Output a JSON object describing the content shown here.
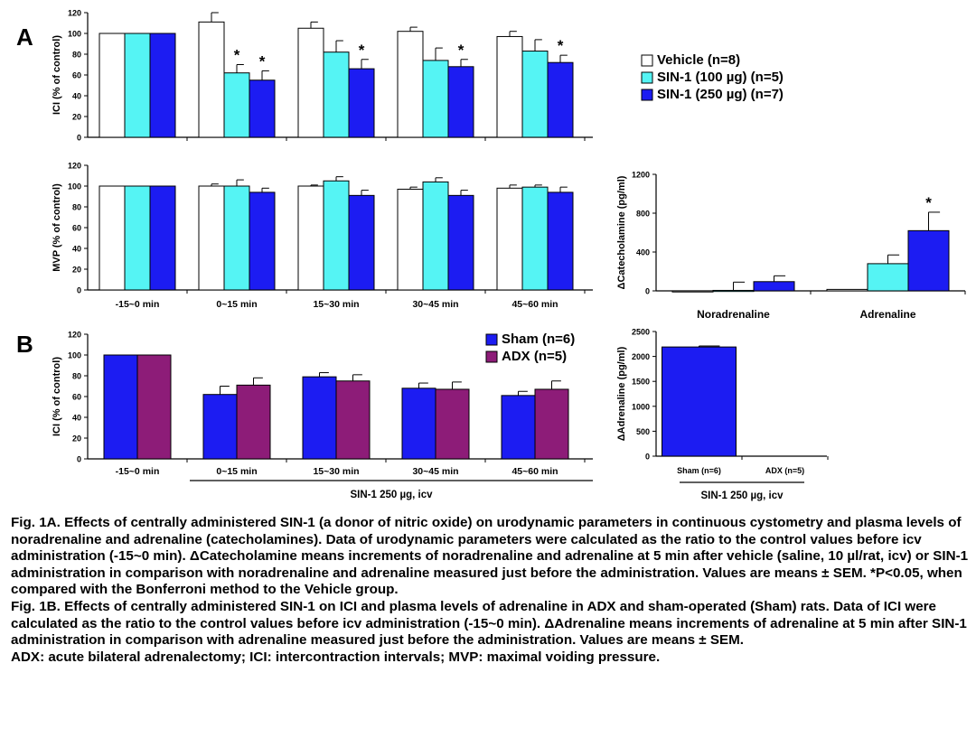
{
  "panels": {
    "a": "A",
    "b": "B"
  },
  "colors": {
    "vehicle": "#ffffff",
    "sin100": "#55f4f4",
    "sin250": "#1c1cf2",
    "sham": "#1c1cf2",
    "adx": "#8d1c78"
  },
  "legend_a": [
    {
      "label": "Vehicle (n=8)",
      "color": "#ffffff"
    },
    {
      "label": "SIN-1 (100 µg) (n=5)",
      "color": "#55f4f4"
    },
    {
      "label": "SIN-1 (250 µg) (n=7)",
      "color": "#1c1cf2"
    }
  ],
  "legend_b": [
    {
      "label": "Sham (n=6)",
      "color": "#1c1cf2"
    },
    {
      "label": "ADX (n=5)",
      "color": "#8d1c78"
    }
  ],
  "chart_data": [
    {
      "id": "ici_a",
      "type": "bar",
      "ylabel": "ICI (% of control)",
      "ylim": [
        0,
        120
      ],
      "yticks": [
        0,
        20,
        40,
        60,
        80,
        100,
        120
      ],
      "categories": [
        "-15~0 min",
        "0~15 min",
        "15~30 min",
        "30~45 min",
        "45~60 min"
      ],
      "show_xlabels": false,
      "series": [
        {
          "name": "Vehicle (n=8)",
          "color": "#ffffff",
          "values": [
            100,
            111,
            105,
            102,
            97
          ],
          "errors": [
            0,
            9,
            6,
            4,
            5
          ],
          "sig": [
            "",
            "",
            "",
            "",
            ""
          ]
        },
        {
          "name": "SIN-1 (100 µg) (n=5)",
          "color": "#55f4f4",
          "values": [
            100,
            62,
            82,
            74,
            83
          ],
          "errors": [
            0,
            8,
            11,
            12,
            11
          ],
          "sig": [
            "",
            "*",
            "",
            "",
            ""
          ]
        },
        {
          "name": "SIN-1 (250 µg) (n=7)",
          "color": "#1c1cf2",
          "values": [
            100,
            55,
            66,
            68,
            72
          ],
          "errors": [
            0,
            9,
            9,
            7,
            7
          ],
          "sig": [
            "",
            "*",
            "*",
            "*",
            "*"
          ]
        }
      ]
    },
    {
      "id": "mvp_a",
      "type": "bar",
      "ylabel": "MVP (% of control)",
      "ylim": [
        0,
        120
      ],
      "yticks": [
        0,
        20,
        40,
        60,
        80,
        100,
        120
      ],
      "categories": [
        "-15~0 min",
        "0~15 min",
        "15~30 min",
        "30~45 min",
        "45~60 min"
      ],
      "show_xlabels": true,
      "series": [
        {
          "name": "Vehicle (n=8)",
          "color": "#ffffff",
          "values": [
            100,
            100,
            100,
            97,
            98
          ],
          "errors": [
            0,
            2,
            1,
            2,
            3
          ],
          "sig": [
            "",
            "",
            "",
            "",
            ""
          ]
        },
        {
          "name": "SIN-1 (100 µg) (n=5)",
          "color": "#55f4f4",
          "values": [
            100,
            100,
            105,
            104,
            99
          ],
          "errors": [
            0,
            6,
            4,
            4,
            2
          ],
          "sig": [
            "",
            "",
            "",
            "",
            ""
          ]
        },
        {
          "name": "SIN-1 (250 µg) (n=7)",
          "color": "#1c1cf2",
          "values": [
            100,
            94,
            91,
            91,
            94
          ],
          "errors": [
            0,
            4,
            5,
            5,
            5
          ],
          "sig": [
            "",
            "",
            "",
            "",
            ""
          ]
        }
      ]
    },
    {
      "id": "cat_a",
      "type": "bar",
      "ylabel": "ΔCatecholamine (pg/ml)",
      "ylim": [
        0,
        1200
      ],
      "yticks": [
        0,
        400,
        800,
        1200
      ],
      "categories": [
        "Noradrenaline",
        "Adrenaline"
      ],
      "show_xlabels": true,
      "series": [
        {
          "name": "Vehicle (n=8)",
          "color": "#ffffff",
          "values": [
            -10,
            15
          ],
          "errors": [
            0,
            0
          ],
          "sig": [
            "",
            ""
          ]
        },
        {
          "name": "SIN-1 (100 µg) (n=5)",
          "color": "#55f4f4",
          "values": [
            5,
            280
          ],
          "errors": [
            85,
            90
          ],
          "sig": [
            "",
            ""
          ]
        },
        {
          "name": "SIN-1 (250 µg) (n=7)",
          "color": "#1c1cf2",
          "values": [
            95,
            620
          ],
          "errors": [
            60,
            190
          ],
          "sig": [
            "",
            "*"
          ]
        }
      ]
    },
    {
      "id": "ici_b",
      "type": "bar",
      "ylabel": "ICI (% of control)",
      "ylim": [
        0,
        120
      ],
      "yticks": [
        0,
        20,
        40,
        60,
        80,
        100,
        120
      ],
      "categories": [
        "-15~0 min",
        "0~15 min",
        "15~30 min",
        "30~45 min",
        "45~60 min"
      ],
      "show_xlabels": true,
      "bracket_label": "SIN-1 250 µg, icv",
      "series": [
        {
          "name": "Sham (n=6)",
          "color": "#1c1cf2",
          "values": [
            100,
            62,
            79,
            68,
            61
          ],
          "errors": [
            0,
            8,
            4,
            5,
            4
          ],
          "sig": [
            "",
            "",
            "",
            "",
            ""
          ]
        },
        {
          "name": "ADX (n=5)",
          "color": "#8d1c78",
          "values": [
            100,
            71,
            75,
            67,
            67
          ],
          "errors": [
            0,
            7,
            6,
            7,
            8
          ],
          "sig": [
            "",
            "",
            "",
            "",
            ""
          ]
        }
      ]
    },
    {
      "id": "adr_b",
      "type": "bar",
      "ylabel": "ΔAdrenaline (pg/ml)",
      "ylim": [
        0,
        2500
      ],
      "yticks": [
        0,
        500,
        1000,
        1500,
        2000,
        2500
      ],
      "categories": [
        "Sham (n=6)",
        "ADX (n=5)"
      ],
      "show_xlabels": true,
      "bracket_label": "SIN-1 250 µg, icv",
      "series": [
        {
          "name": "",
          "color": "#1c1cf2",
          "values": [
            2190,
            0
          ],
          "errors": [
            20,
            0
          ],
          "sig": [
            "",
            ""
          ]
        }
      ]
    }
  ],
  "caption": {
    "p1": "Fig. 1A. Effects of centrally administered SIN-1 (a donor of nitric oxide) on urodynamic parameters in continuous cystometry and plasma levels of noradrenaline and adrenaline (catecholamines).  Data of urodynamic parameters were calculated as the ratio to the control values before icv administration (-15~0 min).  ΔCatecholamine means increments of noradrenaline and adrenaline at 5 min after vehicle (saline, 10 µl/rat, icv) or SIN-1 administration in comparison with noradrenaline and adrenaline measured just before the administration.  Values are means ± SEM.  ",
    "p1_sig": "*P<0.05, when compared with the Bonferroni method to the Vehicle group.",
    "p2": "Fig. 1B. Effects of centrally administered SIN-1 on ICI and plasma levels of adrenaline in ADX and sham-operated (Sham) rats.  Data of ICI were calculated as the ratio to the control values before icv administration (-15~0 min).  ΔAdrenaline means increments of adrenaline at 5 min after SIN-1 administration in comparison with adrenaline measured just before the administration.  Values are means ± SEM.",
    "p3": "ADX: acute bilateral adrenalectomy; ICI: intercontraction intervals; MVP: maximal voiding pressure."
  }
}
